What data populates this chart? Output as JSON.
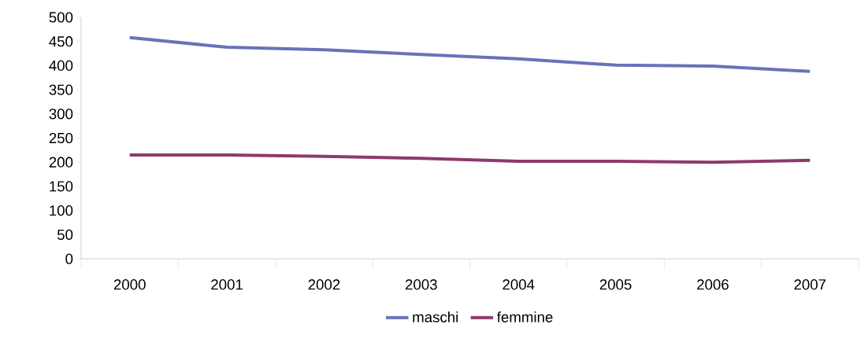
{
  "chart_data": {
    "type": "line",
    "categories": [
      "2000",
      "2001",
      "2002",
      "2003",
      "2004",
      "2005",
      "2006",
      "2007"
    ],
    "series": [
      {
        "name": "maschi",
        "color": "#6a72b8",
        "values": [
          458,
          438,
          433,
          423,
          414,
          401,
          399,
          388
        ]
      },
      {
        "name": "femmine",
        "color": "#8e3a6a",
        "values": [
          215,
          215,
          212,
          208,
          202,
          202,
          200,
          204
        ]
      }
    ],
    "ylim": [
      0,
      500
    ],
    "yticks": [
      0,
      50,
      100,
      150,
      200,
      250,
      300,
      350,
      400,
      450,
      500
    ],
    "grid": false,
    "legend": "bottom",
    "marker": "none",
    "line_style": "solid"
  }
}
